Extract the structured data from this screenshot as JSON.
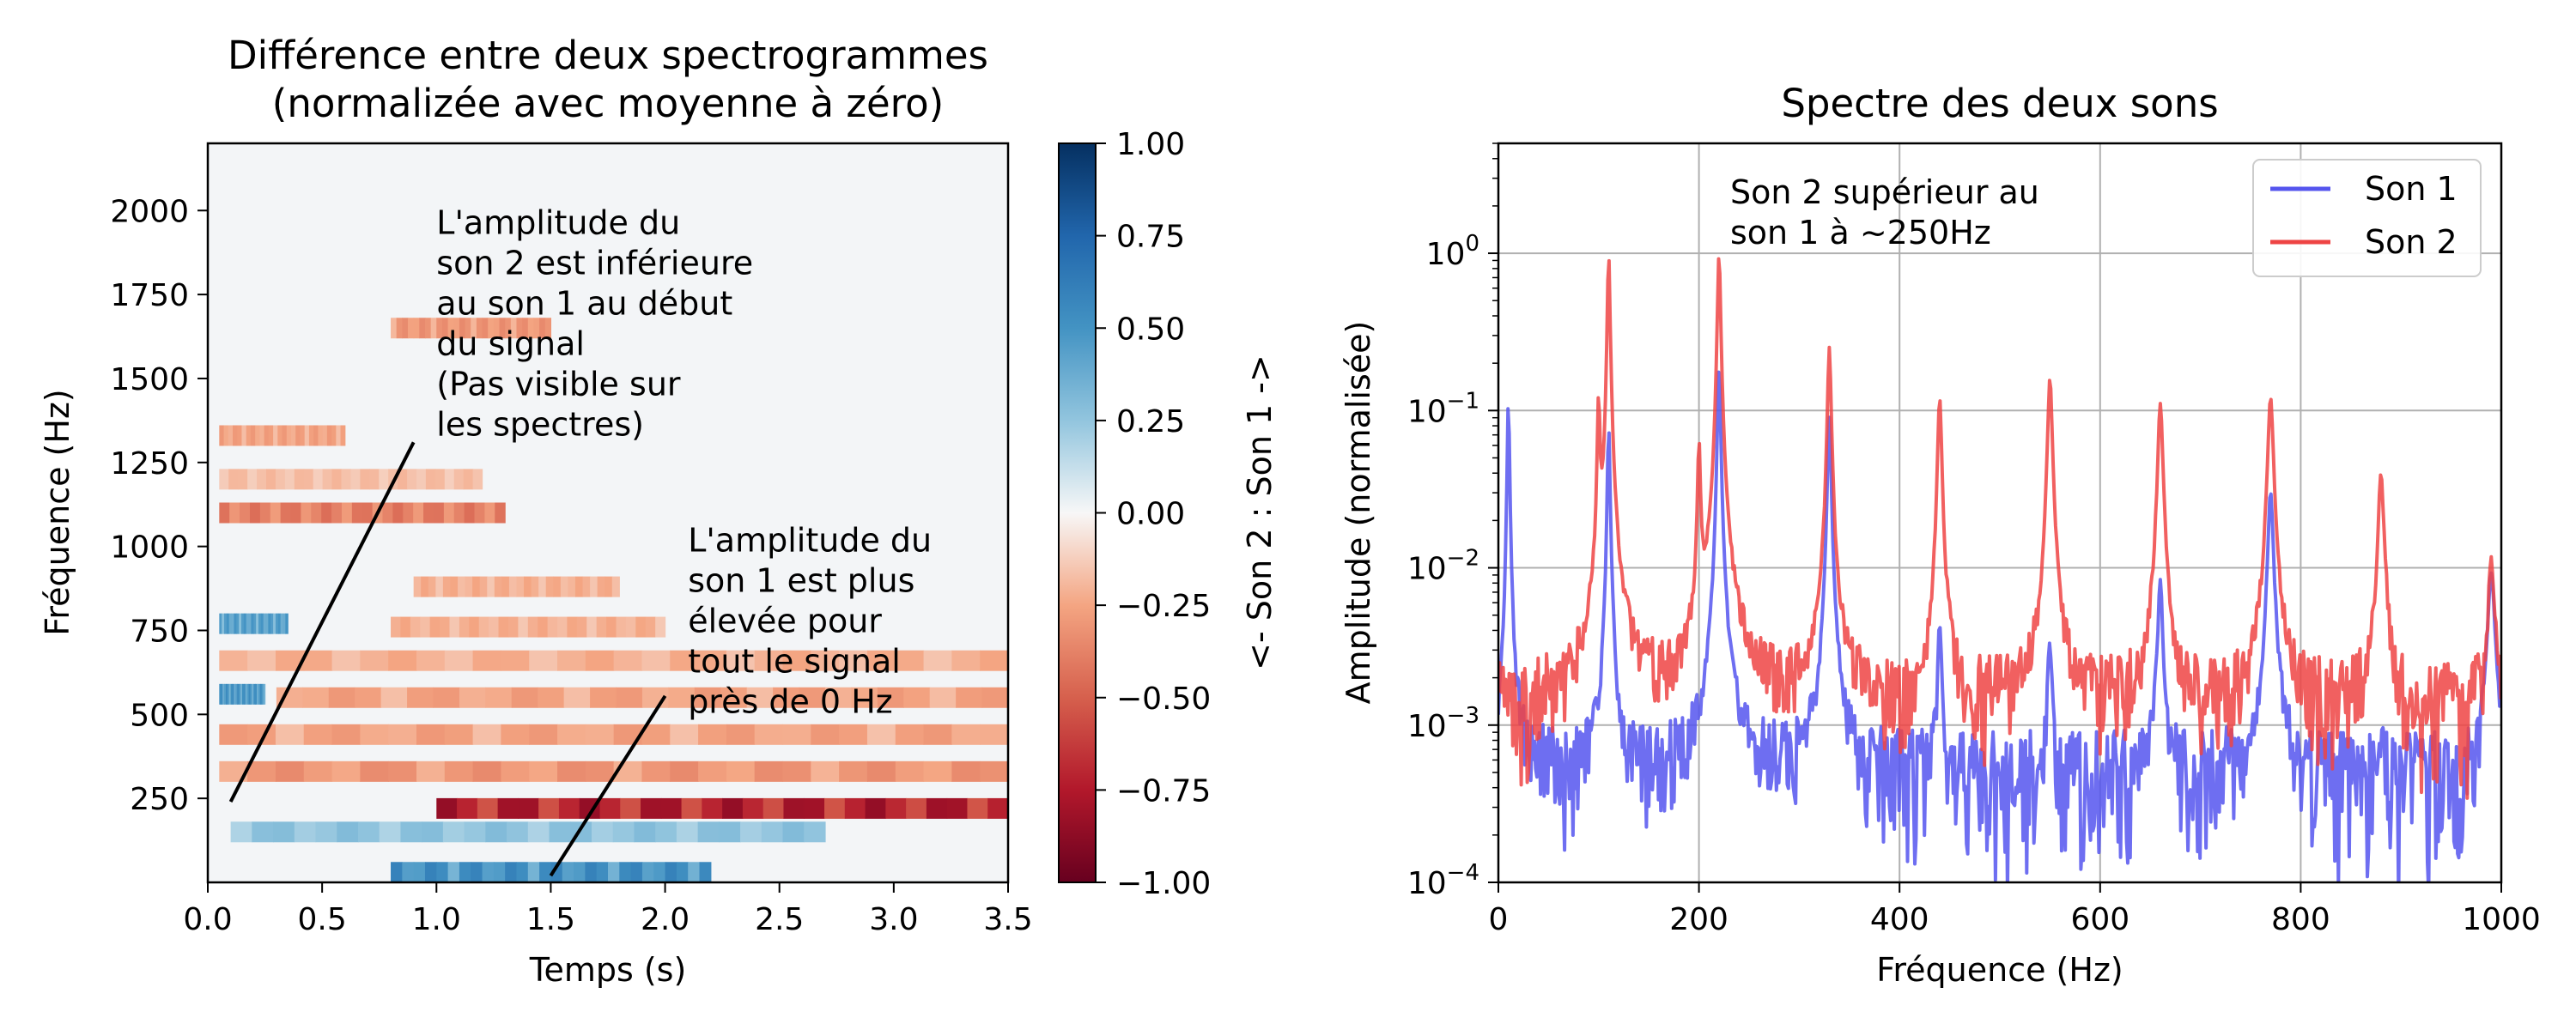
{
  "chart_data": [
    {
      "type": "heatmap",
      "title_line1": "Différence entre deux spectrogrammes",
      "title_line2": "(normalizée avec moyenne à zéro)",
      "xlabel": "Temps (s)",
      "ylabel": "Fréquence (Hz)",
      "xlim": [
        0.0,
        3.5
      ],
      "ylim": [
        0,
        2200
      ],
      "x_ticks": [
        "0.0",
        "0.5",
        "1.0",
        "1.5",
        "2.0",
        "2.5",
        "3.0",
        "3.5"
      ],
      "y_ticks": [
        "250",
        "500",
        "750",
        "1000",
        "1250",
        "1500",
        "1750",
        "2000"
      ],
      "colormap": "RdBu",
      "colorbar": {
        "range": [
          -1.0,
          1.0
        ],
        "ticks": [
          "1.00",
          "0.75",
          "0.50",
          "0.25",
          "0.00",
          "−0.25",
          "−0.50",
          "−0.75",
          "−1.00"
        ],
        "label": "<- Son 2   :   Son 1 ->"
      },
      "features": [
        {
          "freq": 1650,
          "t0": 0.8,
          "t1": 1.5,
          "value": -0.35
        },
        {
          "freq": 1330,
          "t0": 0.05,
          "t1": 0.6,
          "value": -0.3
        },
        {
          "freq": 1200,
          "t0": 0.05,
          "t1": 1.2,
          "value": -0.2
        },
        {
          "freq": 1100,
          "t0": 0.05,
          "t1": 1.3,
          "value": -0.45
        },
        {
          "freq": 880,
          "t0": 0.9,
          "t1": 1.8,
          "value": -0.25
        },
        {
          "freq": 770,
          "t0": 0.05,
          "t1": 0.35,
          "value": 0.5
        },
        {
          "freq": 760,
          "t0": 0.8,
          "t1": 2.0,
          "value": -0.25
        },
        {
          "freq": 660,
          "t0": 0.05,
          "t1": 3.5,
          "value": -0.25
        },
        {
          "freq": 560,
          "t0": 0.05,
          "t1": 0.25,
          "value": 0.55
        },
        {
          "freq": 550,
          "t0": 0.3,
          "t1": 3.5,
          "value": -0.3
        },
        {
          "freq": 440,
          "t0": 0.05,
          "t1": 3.5,
          "value": -0.3
        },
        {
          "freq": 330,
          "t0": 0.05,
          "t1": 3.5,
          "value": -0.35
        },
        {
          "freq": 220,
          "t0": 1.0,
          "t1": 3.5,
          "value": -0.85
        },
        {
          "freq": 150,
          "t0": 0.1,
          "t1": 2.7,
          "value": 0.3
        },
        {
          "freq": 30,
          "t0": 0.8,
          "t1": 2.2,
          "value": 0.6
        }
      ],
      "annotations": [
        {
          "lines": [
            "L'amplitude du",
            "son 2 est inférieure",
            "au son 1 au début",
            "du signal",
            "(Pas visible sur",
            "les spectres)"
          ],
          "text_at": [
            1.0,
            1930
          ],
          "point_to": [
            0.1,
            240
          ],
          "line_from": [
            0.9,
            1310
          ]
        },
        {
          "lines": [
            "L'amplitude du",
            "son 1 est plus",
            "élevée pour",
            "tout le signal",
            "près de 0 Hz"
          ],
          "text_at": [
            2.1,
            985
          ],
          "point_to": [
            1.5,
            20
          ],
          "line_from": [
            2.0,
            555
          ]
        }
      ]
    },
    {
      "type": "line",
      "title": "Spectre des deux sons",
      "xlabel": "Fréquence (Hz)",
      "ylabel": "Amplitude (normalisée)",
      "xlim": [
        0,
        1000
      ],
      "ylim": [
        0.0001,
        5
      ],
      "yscale": "log",
      "grid": true,
      "x_ticks": [
        "0",
        "200",
        "400",
        "600",
        "800",
        "1000"
      ],
      "y_ticks": [
        {
          "base": "10",
          "exp": "0",
          "value": 1
        },
        {
          "base": "10",
          "exp": "−1",
          "value": 0.1
        },
        {
          "base": "10",
          "exp": "−2",
          "value": 0.01
        },
        {
          "base": "10",
          "exp": "−3",
          "value": 0.001
        },
        {
          "base": "10",
          "exp": "−4",
          "value": 0.0001
        }
      ],
      "legend": {
        "placement": "top-right"
      },
      "annotation_lines": [
        "Son 2 supérieur au",
        "son 1 à ~250Hz"
      ],
      "series": [
        {
          "name": "Son 1",
          "color": "#5555ee",
          "floor": 0.0003,
          "peaks": [
            [
              10,
              0.12
            ],
            [
              110,
              0.08
            ],
            [
              220,
              0.19
            ],
            [
              330,
              0.09
            ],
            [
              440,
              0.004
            ],
            [
              550,
              0.003
            ],
            [
              660,
              0.008
            ],
            [
              770,
              0.03
            ],
            [
              880,
              0.0004
            ],
            [
              990,
              0.009
            ]
          ]
        },
        {
          "name": "Son 2",
          "color": "#ee4444",
          "floor": 0.0008,
          "peaks": [
            [
              100,
              0.12
            ],
            [
              110,
              1.0
            ],
            [
              200,
              0.06
            ],
            [
              220,
              1.0
            ],
            [
              330,
              0.25
            ],
            [
              440,
              0.12
            ],
            [
              550,
              0.16
            ],
            [
              660,
              0.11
            ],
            [
              770,
              0.12
            ],
            [
              880,
              0.038
            ],
            [
              990,
              0.01
            ]
          ]
        }
      ]
    }
  ]
}
